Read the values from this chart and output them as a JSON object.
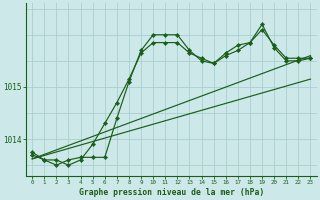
{
  "title": "Graphe pression niveau de la mer (hPa)",
  "background_color": "#cce8e8",
  "grid_color": "#aacece",
  "line_color": "#1a5e1a",
  "x_labels": [
    "0",
    "1",
    "2",
    "3",
    "4",
    "5",
    "6",
    "7",
    "8",
    "9",
    "10",
    "11",
    "12",
    "13",
    "14",
    "15",
    "16",
    "17",
    "18",
    "19",
    "20",
    "21",
    "22",
    "23"
  ],
  "yticks": [
    1014,
    1015
  ],
  "ylim": [
    1013.3,
    1016.6
  ],
  "xlim": [
    -0.5,
    23.5
  ],
  "line1_y": [
    1013.7,
    1013.6,
    1013.6,
    1013.5,
    1013.6,
    1013.9,
    1014.3,
    1014.7,
    1015.15,
    1015.65,
    1015.85,
    1015.85,
    1015.85,
    1015.65,
    1015.55,
    1015.45,
    1015.6,
    1015.7,
    1015.85,
    1016.1,
    1015.8,
    1015.55,
    1015.55,
    1015.55
  ],
  "line2_y": [
    1013.75,
    1013.6,
    1013.5,
    1013.6,
    1013.65,
    1013.65,
    1013.65,
    1014.4,
    1015.1,
    1015.7,
    1016.0,
    1016.0,
    1016.0,
    1015.7,
    1015.5,
    1015.45,
    1015.65,
    1015.8,
    1015.85,
    1016.2,
    1015.75,
    1015.5,
    1015.5,
    1015.55
  ],
  "trend1_x": [
    0,
    23
  ],
  "trend1_y": [
    1013.62,
    1015.6
  ],
  "trend2_x": [
    0,
    23
  ],
  "trend2_y": [
    1013.62,
    1015.15
  ]
}
